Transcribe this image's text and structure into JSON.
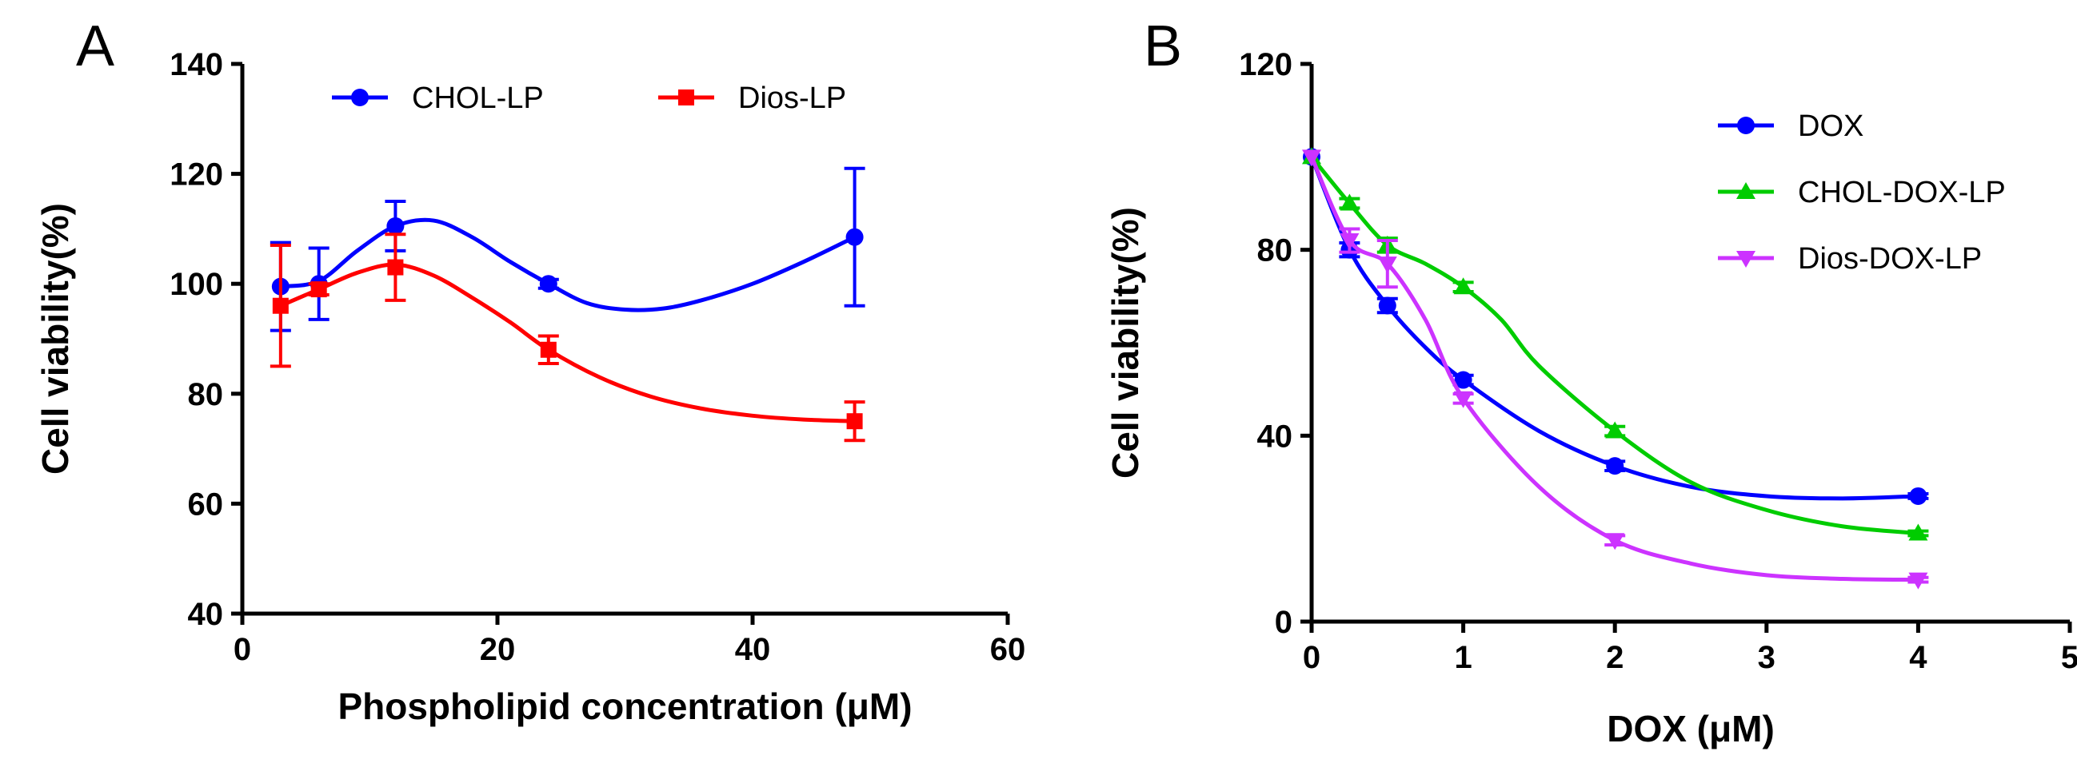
{
  "chart_data": [
    {
      "panel": "A",
      "type": "line",
      "xlabel": "Phospholipid concentration (μM)",
      "ylabel": "Cell viability(%)",
      "xlim": [
        0,
        60
      ],
      "ylim": [
        40,
        140
      ],
      "xticks": [
        0,
        20,
        40,
        60
      ],
      "yticks": [
        40,
        60,
        80,
        100,
        120,
        140
      ],
      "legend_position": "top",
      "series": [
        {
          "name": "CHOL-LP",
          "color": "#0000ff",
          "marker": "circle",
          "x": [
            3,
            6,
            12,
            24,
            48
          ],
          "values": [
            99.5,
            100,
            110.5,
            100,
            108.5
          ],
          "errors": [
            8,
            6.5,
            4.5,
            0.8,
            12.5
          ],
          "curve": [
            [
              3,
              99.5
            ],
            [
              6,
              100.5
            ],
            [
              9,
              106
            ],
            [
              12,
              110.5
            ],
            [
              15,
              111.5
            ],
            [
              18,
              108.5
            ],
            [
              21,
              104
            ],
            [
              24,
              100
            ],
            [
              27,
              96.5
            ],
            [
              30,
              95.3
            ],
            [
              33,
              95.5
            ],
            [
              36,
              97
            ],
            [
              40,
              100
            ],
            [
              44,
              104
            ],
            [
              48,
              108.5
            ]
          ]
        },
        {
          "name": "Dios-LP",
          "color": "#ff0000",
          "marker": "square",
          "x": [
            3,
            6,
            12,
            24,
            48
          ],
          "values": [
            96,
            99,
            103,
            88,
            75
          ],
          "errors": [
            11,
            1,
            6,
            2.5,
            3.5
          ],
          "curve": [
            [
              3,
              96
            ],
            [
              6,
              99
            ],
            [
              9,
              102
            ],
            [
              12,
              103.5
            ],
            [
              15,
              101.5
            ],
            [
              18,
              97.5
            ],
            [
              21,
              93
            ],
            [
              24,
              88
            ],
            [
              28,
              83
            ],
            [
              32,
              79.5
            ],
            [
              36,
              77.3
            ],
            [
              40,
              76
            ],
            [
              44,
              75.3
            ],
            [
              48,
              75
            ]
          ]
        }
      ]
    },
    {
      "panel": "B",
      "type": "line",
      "xlabel": "DOX (μM)",
      "ylabel": "Cell viability(%)",
      "xlim": [
        0,
        5
      ],
      "ylim": [
        0,
        120
      ],
      "xticks": [
        0,
        1,
        2,
        3,
        4,
        5
      ],
      "yticks": [
        0,
        40,
        80,
        120
      ],
      "legend_position": "top-right",
      "series": [
        {
          "name": "DOX",
          "color": "#0000ff",
          "marker": "circle",
          "x": [
            0,
            0.25,
            0.5,
            1,
            2,
            4
          ],
          "values": [
            100,
            80,
            68,
            52,
            33.5,
            27
          ],
          "errors": [
            0,
            1.5,
            1.5,
            1,
            1,
            0.5
          ],
          "curve": [
            [
              0,
              100
            ],
            [
              0.25,
              80
            ],
            [
              0.5,
              68
            ],
            [
              0.75,
              59
            ],
            [
              1,
              52
            ],
            [
              1.5,
              41
            ],
            [
              2,
              33.5
            ],
            [
              2.5,
              29
            ],
            [
              3,
              27
            ],
            [
              3.5,
              26.5
            ],
            [
              4,
              27
            ]
          ]
        },
        {
          "name": "CHOL-DOX-LP",
          "color": "#00cc00",
          "marker": "triangle-up",
          "x": [
            0,
            0.25,
            0.5,
            1,
            2,
            4
          ],
          "values": [
            100,
            90,
            81,
            72,
            41,
            19
          ],
          "errors": [
            0,
            1,
            1.5,
            1,
            1,
            0.5
          ],
          "curve": [
            [
              0,
              100
            ],
            [
              0.25,
              90
            ],
            [
              0.5,
              81
            ],
            [
              0.75,
              77
            ],
            [
              1,
              72
            ],
            [
              1.25,
              65
            ],
            [
              1.5,
              55
            ],
            [
              2,
              41
            ],
            [
              2.5,
              30
            ],
            [
              3,
              24
            ],
            [
              3.5,
              20.5
            ],
            [
              4,
              19
            ]
          ]
        },
        {
          "name": "Dios-DOX-LP",
          "color": "#cc33ff",
          "marker": "triangle-down",
          "x": [
            0,
            0.25,
            0.5,
            1,
            2,
            4
          ],
          "values": [
            100,
            82,
            77,
            48,
            17.5,
            9
          ],
          "errors": [
            0,
            2.5,
            5,
            1,
            1,
            0.5
          ],
          "curve": [
            [
              0,
              100
            ],
            [
              0.25,
              82
            ],
            [
              0.5,
              77
            ],
            [
              0.75,
              65
            ],
            [
              1,
              48
            ],
            [
              1.5,
              29
            ],
            [
              2,
              17.5
            ],
            [
              2.5,
              12.5
            ],
            [
              3,
              10
            ],
            [
              3.5,
              9.2
            ],
            [
              4,
              9
            ]
          ]
        }
      ]
    }
  ]
}
